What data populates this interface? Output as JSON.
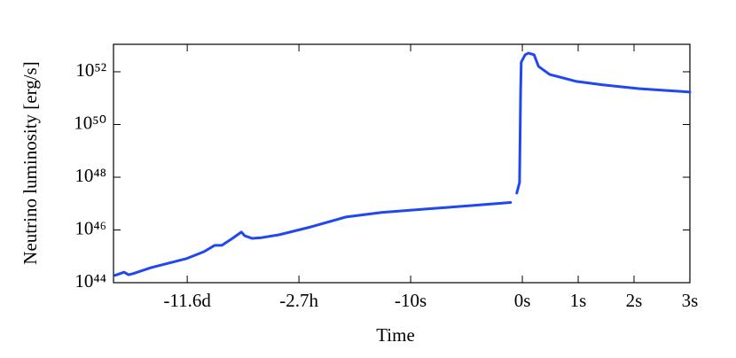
{
  "chart_data": {
    "type": "line",
    "x_label": "Time",
    "y_label": "Neutrino luminosity [erg/s]",
    "y_scale": "log",
    "color": "#2047f0",
    "xlim": [
      -7.32,
      3
    ],
    "xticks": [
      {
        "value": -6,
        "label": "-11.6d"
      },
      {
        "value": -4,
        "label": "-2.7h"
      },
      {
        "value": -2,
        "label": "-10s"
      },
      {
        "value": 0,
        "label": "0s"
      },
      {
        "value": 1,
        "label": "1s"
      },
      {
        "value": 2,
        "label": "2s"
      },
      {
        "value": 3,
        "label": "3s"
      }
    ],
    "ylim": [
      1e+44,
      1.1e+53
    ],
    "yticks": [
      {
        "value": 1e+44,
        "label": "10⁴⁴"
      },
      {
        "value": 1e+46,
        "label": "10⁴⁶"
      },
      {
        "value": 1e+48,
        "label": "10⁴⁸"
      },
      {
        "value": 1e+50,
        "label": "10⁵⁰"
      },
      {
        "value": 1e+52,
        "label": "10⁵²"
      }
    ],
    "x": [
      -7.29,
      -7.13,
      -7.05,
      -6.97,
      -6.65,
      -6.02,
      -5.7,
      -5.51,
      -5.38,
      -5.19,
      -5.03,
      -4.97,
      -4.84,
      -4.67,
      -4.35,
      -3.79,
      -3.16,
      -2.52,
      -1.73,
      -0.94,
      -0.21,
      -0.15,
      -0.1,
      -0.05,
      -0.03,
      -0.02,
      0.05,
      0.11,
      0.21,
      0.29,
      0.49,
      0.97,
      1.44,
      2.08,
      3.0
    ],
    "values": [
      1.9e+44,
      2.5e+44,
      2e+44,
      2.2e+44,
      3.7e+44,
      8.1e+44,
      1.5e+45,
      2.6e+45,
      2.6e+45,
      4.8e+45,
      8.3e+45,
      6e+45,
      4.8e+45,
      5.1e+45,
      6.6e+45,
      1.3e+46,
      3.1e+46,
      4.6e+46,
      6.2e+46,
      8.3e+46,
      1.1e+47,
      null,
      2.5e+47,
      6.3e+47,
      2.3e+51,
      2.3e+52,
      4.4e+52,
      5.1e+52,
      4.4e+52,
      1.6e+52,
      7.9e+51,
      4.3e+51,
      3.2e+51,
      2.3e+51,
      1.7e+51
    ]
  }
}
